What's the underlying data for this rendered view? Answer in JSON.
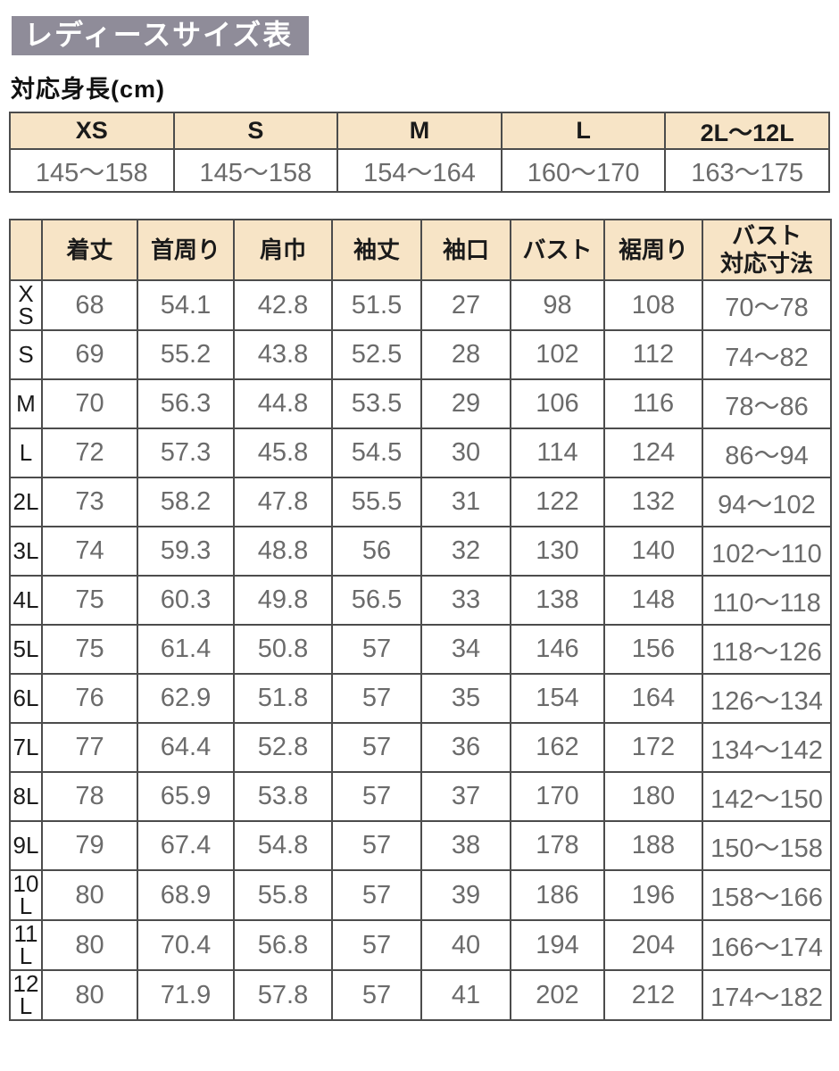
{
  "page": {
    "title": "レディースサイズ表",
    "height_section_label": "対応身長(cm)"
  },
  "colors": {
    "title_bg": "#8f8c99",
    "title_text": "#ffffff",
    "header_bg": "#f7e4c6",
    "border": "#4c4c4c",
    "data_text": "#6b6b6b",
    "label_text": "#1a1a1a"
  },
  "height_table": {
    "headers": [
      "XS",
      "S",
      "M",
      "L",
      "2L～12L"
    ],
    "values": [
      "145～158",
      "145～158",
      "154～164",
      "160～170",
      "163～175"
    ]
  },
  "size_table": {
    "corner": "",
    "columns": [
      "着丈",
      "首周り",
      "肩巾",
      "袖丈",
      "袖口",
      "バスト",
      "裾周り",
      "バスト\n対応寸法"
    ],
    "rows": [
      {
        "label": "XS",
        "values": [
          "68",
          "54.1",
          "42.8",
          "51.5",
          "27",
          "98",
          "108",
          "70～78"
        ]
      },
      {
        "label": "S",
        "values": [
          "69",
          "55.2",
          "43.8",
          "52.5",
          "28",
          "102",
          "112",
          "74～82"
        ]
      },
      {
        "label": "M",
        "values": [
          "70",
          "56.3",
          "44.8",
          "53.5",
          "29",
          "106",
          "116",
          "78～86"
        ]
      },
      {
        "label": "L",
        "values": [
          "72",
          "57.3",
          "45.8",
          "54.5",
          "30",
          "114",
          "124",
          "86～94"
        ]
      },
      {
        "label": "2L",
        "values": [
          "73",
          "58.2",
          "47.8",
          "55.5",
          "31",
          "122",
          "132",
          "94～102"
        ]
      },
      {
        "label": "3L",
        "values": [
          "74",
          "59.3",
          "48.8",
          "56",
          "32",
          "130",
          "140",
          "102～110"
        ]
      },
      {
        "label": "4L",
        "values": [
          "75",
          "60.3",
          "49.8",
          "56.5",
          "33",
          "138",
          "148",
          "110～118"
        ]
      },
      {
        "label": "5L",
        "values": [
          "75",
          "61.4",
          "50.8",
          "57",
          "34",
          "146",
          "156",
          "118～126"
        ]
      },
      {
        "label": "6L",
        "values": [
          "76",
          "62.9",
          "51.8",
          "57",
          "35",
          "154",
          "164",
          "126～134"
        ]
      },
      {
        "label": "7L",
        "values": [
          "77",
          "64.4",
          "52.8",
          "57",
          "36",
          "162",
          "172",
          "134～142"
        ]
      },
      {
        "label": "8L",
        "values": [
          "78",
          "65.9",
          "53.8",
          "57",
          "37",
          "170",
          "180",
          "142～150"
        ]
      },
      {
        "label": "9L",
        "values": [
          "79",
          "67.4",
          "54.8",
          "57",
          "38",
          "178",
          "188",
          "150～158"
        ]
      },
      {
        "label": "10L",
        "values": [
          "80",
          "68.9",
          "55.8",
          "57",
          "39",
          "186",
          "196",
          "158～166"
        ]
      },
      {
        "label": "11L",
        "values": [
          "80",
          "70.4",
          "56.8",
          "57",
          "40",
          "194",
          "204",
          "166～174"
        ]
      },
      {
        "label": "12L",
        "values": [
          "80",
          "71.9",
          "57.8",
          "57",
          "41",
          "202",
          "212",
          "174～182"
        ]
      }
    ]
  }
}
